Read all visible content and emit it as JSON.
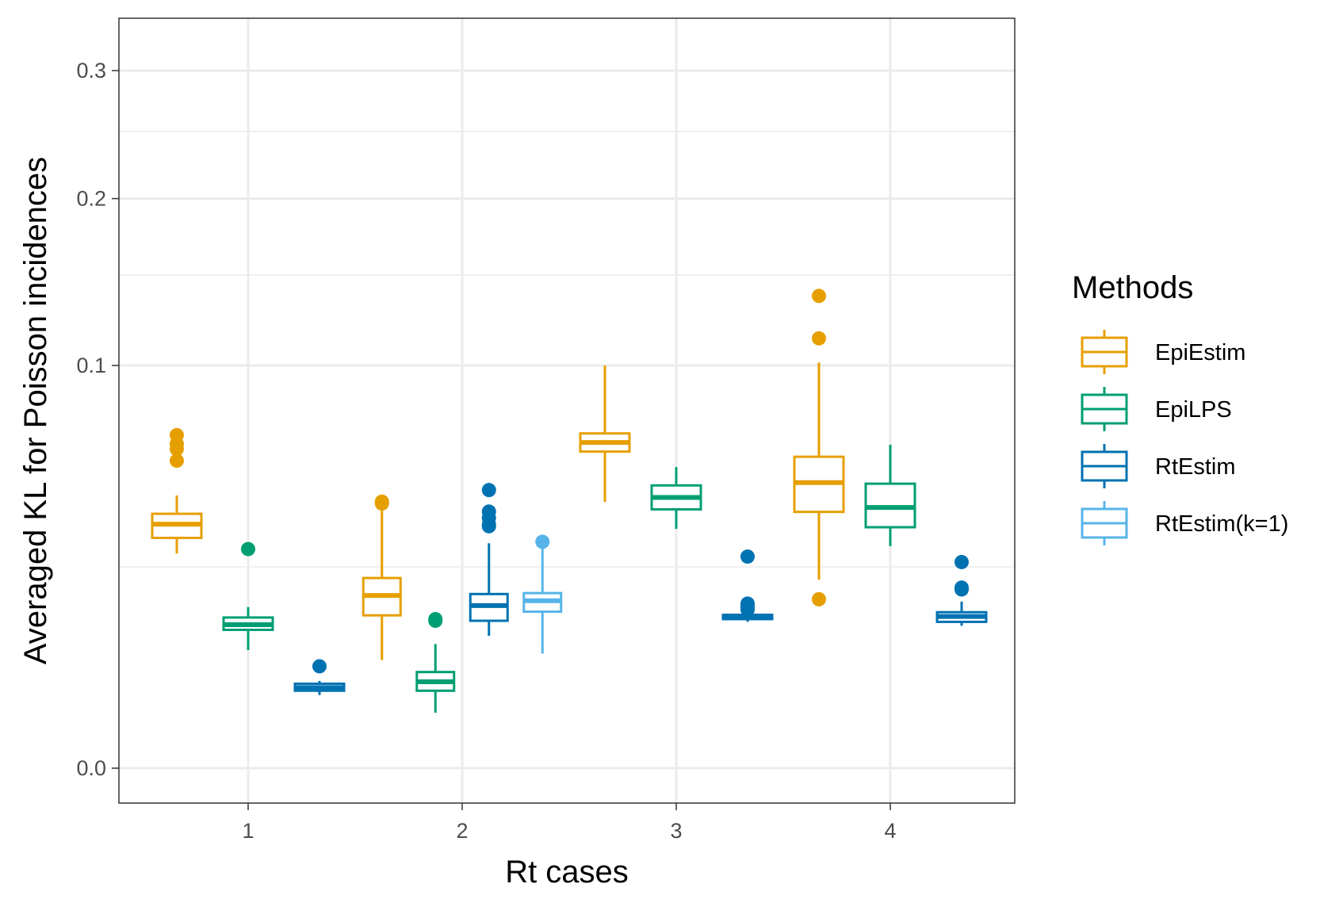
{
  "chart_data": {
    "type": "boxplot",
    "xlabel": "Rt cases",
    "ylabel": "Averaged KL for Poisson incidences",
    "y_scale": "sqrt",
    "ylim": [
      0,
      0.32
    ],
    "y_ticks": [
      0.0,
      0.1,
      0.2,
      0.3
    ],
    "y_tick_labels": [
      "0.0",
      "0.1",
      "0.2",
      "0.3"
    ],
    "y_minor_ticks": [
      0.025,
      0.15,
      0.25
    ],
    "categories": [
      "1",
      "2",
      "3",
      "4"
    ],
    "grid": true,
    "legend": {
      "title": "Methods",
      "position": "right",
      "entries": [
        "EpiEstim",
        "EpiLPS",
        "RtEstim",
        "RtEstim(k=1)"
      ]
    },
    "series": [
      {
        "name": "EpiEstim",
        "color": "#E69F00",
        "boxes": [
          {
            "category": "1",
            "whisker_low": 0.0284,
            "q1": 0.0327,
            "median": 0.0367,
            "q3": 0.0399,
            "whisker_high": 0.0459,
            "outliers": [
              0.0583,
              0.0628,
              0.0648,
              0.0684
            ]
          },
          {
            "category": "2",
            "whisker_low": 0.0072,
            "q1": 0.0144,
            "median": 0.0184,
            "q3": 0.0223,
            "whisker_high": 0.0415,
            "outliers": [
              0.0432,
              0.0438
            ]
          },
          {
            "category": "3",
            "whisker_low": 0.0437,
            "q1": 0.0618,
            "median": 0.0654,
            "q3": 0.0691,
            "whisker_high": 0.1,
            "outliers": []
          },
          {
            "category": "4",
            "whisker_low": 0.0219,
            "q1": 0.0405,
            "median": 0.0503,
            "q3": 0.0598,
            "whisker_high": 0.1014,
            "outliers": [
              0.0176,
              0.1139,
              0.1375
            ]
          }
        ]
      },
      {
        "name": "EpiLPS",
        "color": "#009E73",
        "boxes": [
          {
            "category": "1",
            "whisker_low": 0.0086,
            "q1": 0.0118,
            "median": 0.0127,
            "q3": 0.014,
            "whisker_high": 0.016,
            "outliers": [
              0.0296
            ]
          },
          {
            "category": "2",
            "whisker_low": 0.0019,
            "q1": 0.0037,
            "median": 0.0046,
            "q3": 0.0057,
            "whisker_high": 0.0095,
            "outliers": [
              0.0134,
              0.0137
            ]
          },
          {
            "category": "3",
            "whisker_low": 0.0353,
            "q1": 0.0413,
            "median": 0.0452,
            "q3": 0.0493,
            "whisker_high": 0.0559,
            "outliers": []
          },
          {
            "category": "4",
            "whisker_low": 0.0304,
            "q1": 0.0358,
            "median": 0.0419,
            "q3": 0.0499,
            "whisker_high": 0.0645,
            "outliers": []
          }
        ]
      },
      {
        "name": "RtEstim",
        "color": "#0072B2",
        "boxes": [
          {
            "category": "1",
            "whisker_low": 0.0033,
            "q1": 0.0037,
            "median": 0.004,
            "q3": 0.0044,
            "whisker_high": 0.0047,
            "outliers": [
              0.0064
            ]
          },
          {
            "category": "2",
            "whisker_low": 0.0108,
            "q1": 0.0134,
            "median": 0.0163,
            "q3": 0.0187,
            "whisker_high": 0.0312,
            "outliers": [
              0.0361,
              0.0366,
              0.0386,
              0.0406,
              0.0477
            ]
          },
          {
            "category": "3",
            "whisker_low": 0.0132,
            "q1": 0.0137,
            "median": 0.0141,
            "q3": 0.0145,
            "whisker_high": 0.0151,
            "outliers": [
              0.0155,
              0.0158,
              0.0162,
              0.0167,
              0.0276
            ]
          },
          {
            "category": "4",
            "whisker_low": 0.0125,
            "q1": 0.0132,
            "median": 0.0142,
            "q3": 0.015,
            "whisker_high": 0.0171,
            "outliers": [
              0.0197,
              0.0201,
              0.0262
            ]
          }
        ]
      },
      {
        "name": "RtEstim(k=1)",
        "color": "#56B4E9",
        "boxes": [
          {
            "category": "2",
            "whisker_low": 0.0081,
            "q1": 0.0151,
            "median": 0.0173,
            "q3": 0.0189,
            "whisker_high": 0.0297,
            "outliers": [
              0.0316
            ]
          }
        ]
      }
    ]
  }
}
